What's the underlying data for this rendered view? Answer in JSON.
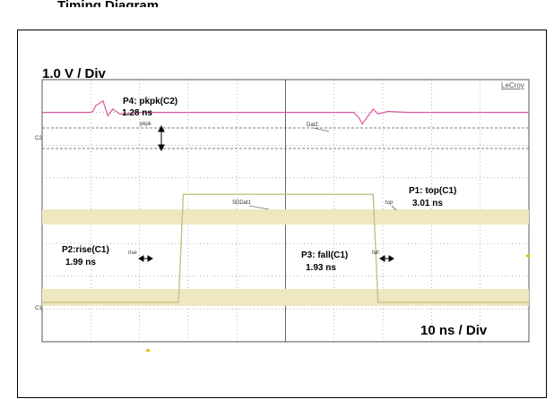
{
  "header_cut_text": "Timing Diagram",
  "scope": {
    "brand": "LeCroy",
    "volt_div": "1.0 V / Div",
    "time_div": "10 ns / Div"
  },
  "colors": {
    "c1": "#c8c083",
    "c1_band": "#efe7c0",
    "c2": "#d9589c",
    "grid": "#6e6e6e",
    "marker": "#d6c31c"
  },
  "labels": {
    "c2_tag": "C2",
    "c1_tag": "C1",
    "dat2": "Dat2",
    "sddat1": "SDDat1",
    "pkpk_small": "pkpk",
    "top_small": "top",
    "rise_small": "rise",
    "fall_small": "fall"
  },
  "measurements": [
    {
      "key": "p4",
      "name": "P4: pkpk(C2)",
      "value": "1.28 ns"
    },
    {
      "key": "p1",
      "name": "P1: top(C1)",
      "value": "3.01 ns"
    },
    {
      "key": "p2",
      "name": "P2:rise(C1)",
      "value": "1.99 ns"
    },
    {
      "key": "p3",
      "name": "P3: fall(C1)",
      "value": "1.93 ns"
    }
  ],
  "chart_data": {
    "type": "line",
    "title": "",
    "xlabel": "10 ns / Div",
    "ylabel": "1.0 V / Div",
    "grid": true,
    "x_divisions": 10,
    "y_divisions": 8,
    "series": [
      {
        "name": "Dat2",
        "x": [
          0,
          1.0,
          1.05,
          1.1,
          1.25,
          1.35,
          1.45,
          1.6,
          2,
          5,
          6.4,
          6.5,
          6.58,
          6.7,
          6.8,
          6.9,
          7.1,
          7.5,
          10
        ],
        "y": [
          7.0,
          7.0,
          7.05,
          7.2,
          7.35,
          6.9,
          7.1,
          6.95,
          7.0,
          7.0,
          7.0,
          6.85,
          6.65,
          6.9,
          7.1,
          6.95,
          7.03,
          7.0,
          7.0
        ]
      },
      {
        "name": "SDDat1",
        "x": [
          0,
          2.8,
          2.9,
          6.8,
          6.9,
          10
        ],
        "y": [
          1.2,
          1.2,
          4.5,
          4.5,
          1.2,
          1.2
        ]
      }
    ]
  }
}
